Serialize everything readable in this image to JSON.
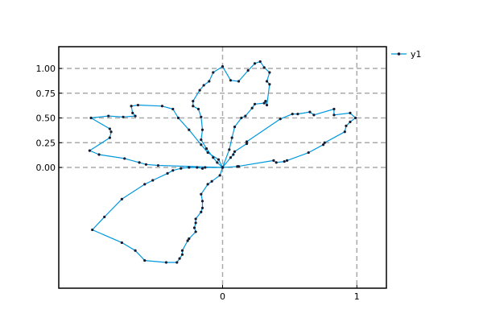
{
  "chart_data": {
    "type": "line",
    "title": "",
    "xlabel": "",
    "ylabel": "",
    "xlim": [
      -1.22,
      1.22
    ],
    "ylim": [
      -1.22,
      1.22
    ],
    "x_ticks": [
      0,
      1
    ],
    "x_tick_labels": [
      "0",
      "1"
    ],
    "y_ticks": [
      0,
      0.25,
      0.5,
      0.75,
      1.0
    ],
    "y_tick_labels": [
      "0.00",
      "0.25",
      "0.50",
      "0.75",
      "1.00"
    ],
    "grid": true,
    "grid_style": "dashed",
    "legend_position": "outside-right-top",
    "series": [
      {
        "name": "y1",
        "color": "#0099dd",
        "marker": "dot",
        "points": [
          [
            0.0,
            0.0
          ],
          [
            0.06,
            0.1
          ],
          [
            0.08,
            0.13
          ],
          [
            0.09,
            0.16
          ],
          [
            0.18,
            0.24
          ],
          [
            0.18,
            0.26
          ],
          [
            0.43,
            0.49
          ],
          [
            0.52,
            0.54
          ],
          [
            0.56,
            0.54
          ],
          [
            0.65,
            0.56
          ],
          [
            0.68,
            0.53
          ],
          [
            0.83,
            0.59
          ],
          [
            0.83,
            0.53
          ],
          [
            0.95,
            0.55
          ],
          [
            0.99,
            0.5
          ],
          [
            0.95,
            0.46
          ],
          [
            0.92,
            0.42
          ],
          [
            0.91,
            0.36
          ],
          [
            0.76,
            0.25
          ],
          [
            0.75,
            0.23
          ],
          [
            0.64,
            0.15
          ],
          [
            0.48,
            0.07
          ],
          [
            0.46,
            0.06
          ],
          [
            0.4,
            0.05
          ],
          [
            0.38,
            0.07
          ],
          [
            0.11,
            0.01
          ],
          [
            0.12,
            0.01
          ],
          [
            0.0,
            0.0
          ],
          [
            -0.02,
            -0.08
          ],
          [
            -0.08,
            -0.14
          ],
          [
            -0.11,
            -0.17
          ],
          [
            -0.16,
            -0.27
          ],
          [
            -0.15,
            -0.34
          ],
          [
            -0.15,
            -0.41
          ],
          [
            -0.16,
            -0.45
          ],
          [
            -0.2,
            -0.52
          ],
          [
            -0.2,
            -0.56
          ],
          [
            -0.21,
            -0.61
          ],
          [
            -0.2,
            -0.65
          ],
          [
            -0.25,
            -0.72
          ],
          [
            -0.26,
            -0.74
          ],
          [
            -0.3,
            -0.84
          ],
          [
            -0.3,
            -0.88
          ],
          [
            -0.32,
            -0.92
          ],
          [
            -0.34,
            -0.96
          ],
          [
            -0.42,
            -0.96
          ],
          [
            -0.58,
            -0.94
          ],
          [
            -0.65,
            -0.84
          ],
          [
            -0.75,
            -0.76
          ],
          [
            -0.97,
            -0.63
          ],
          [
            -0.88,
            -0.5
          ],
          [
            -0.75,
            -0.32
          ],
          [
            -0.58,
            -0.17
          ],
          [
            -0.52,
            -0.13
          ],
          [
            -0.41,
            -0.06
          ],
          [
            -0.37,
            -0.03
          ],
          [
            -0.31,
            -0.01
          ],
          [
            -0.25,
            0.0
          ],
          [
            -0.19,
            0.0
          ],
          [
            -0.15,
            -0.01
          ],
          [
            -0.13,
            0.0
          ],
          [
            0.0,
            0.0
          ],
          [
            -0.48,
            0.02
          ],
          [
            -0.57,
            0.03
          ],
          [
            -0.62,
            0.05
          ],
          [
            -0.73,
            0.09
          ],
          [
            -0.92,
            0.13
          ],
          [
            -0.99,
            0.17
          ],
          [
            -0.84,
            0.3
          ],
          [
            -0.83,
            0.36
          ],
          [
            -0.84,
            0.39
          ],
          [
            -0.98,
            0.5
          ],
          [
            -0.85,
            0.52
          ],
          [
            -0.74,
            0.51
          ],
          [
            -0.65,
            0.52
          ],
          [
            -0.67,
            0.55
          ],
          [
            -0.68,
            0.62
          ],
          [
            -0.63,
            0.63
          ],
          [
            -0.45,
            0.62
          ],
          [
            -0.37,
            0.59
          ],
          [
            -0.33,
            0.5
          ],
          [
            -0.25,
            0.38
          ],
          [
            -0.16,
            0.23
          ],
          [
            -0.11,
            0.15
          ],
          [
            -0.03,
            0.08
          ],
          [
            0.0,
            0.0
          ],
          [
            0.05,
            0.18
          ],
          [
            0.07,
            0.3
          ],
          [
            0.09,
            0.41
          ],
          [
            0.14,
            0.5
          ],
          [
            0.17,
            0.52
          ],
          [
            0.22,
            0.6
          ],
          [
            0.24,
            0.64
          ],
          [
            0.31,
            0.65
          ],
          [
            0.32,
            0.67
          ],
          [
            0.33,
            0.63
          ],
          [
            0.35,
            0.84
          ],
          [
            0.33,
            0.87
          ],
          [
            0.35,
            0.96
          ],
          [
            0.31,
            1.01
          ],
          [
            0.28,
            1.07
          ],
          [
            0.24,
            1.05
          ],
          [
            0.19,
            0.98
          ],
          [
            0.12,
            0.87
          ],
          [
            0.06,
            0.88
          ],
          [
            0.0,
            1.02
          ],
          [
            -0.07,
            0.96
          ],
          [
            -0.1,
            0.87
          ],
          [
            -0.14,
            0.83
          ],
          [
            -0.17,
            0.78
          ],
          [
            -0.22,
            0.67
          ],
          [
            -0.22,
            0.62
          ],
          [
            -0.18,
            0.59
          ],
          [
            -0.16,
            0.51
          ],
          [
            -0.15,
            0.38
          ],
          [
            -0.16,
            0.28
          ],
          [
            -0.12,
            0.19
          ],
          [
            -0.07,
            0.1
          ],
          [
            -0.04,
            0.05
          ],
          [
            0.0,
            0.0
          ]
        ]
      }
    ]
  }
}
